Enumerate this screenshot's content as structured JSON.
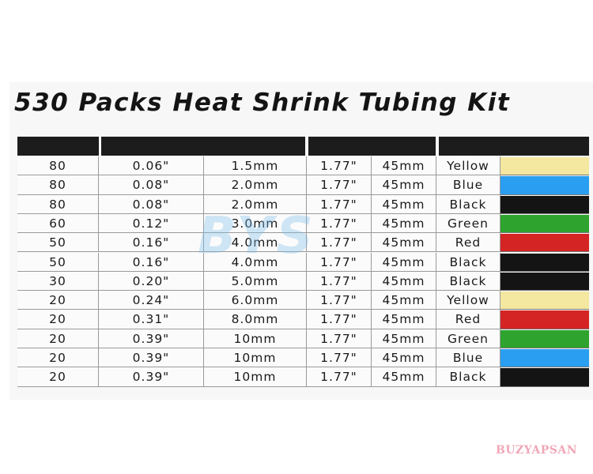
{
  "header": {
    "title": "530 Packs Heat Shrink Tubing Kit"
  },
  "table": {
    "rows": [
      [
        "80",
        "0.06\"",
        "1.5mm",
        "1.77\"",
        "45mm",
        "Yellow"
      ],
      [
        "80",
        "0.08\"",
        "2.0mm",
        "1.77\"",
        "45mm",
        "Blue"
      ],
      [
        "80",
        "0.08\"",
        "2.0mm",
        "1.77\"",
        "45mm",
        "Black"
      ],
      [
        "60",
        "0.12\"",
        "3.0mm",
        "1.77\"",
        "45mm",
        "Green"
      ],
      [
        "50",
        "0.16\"",
        "4.0mm",
        "1.77\"",
        "45mm",
        "Red"
      ],
      [
        "50",
        "0.16\"",
        "4.0mm",
        "1.77\"",
        "45mm",
        "Black"
      ],
      [
        "30",
        "0.20\"",
        "5.0mm",
        "1.77\"",
        "45mm",
        "Black"
      ],
      [
        "20",
        "0.24\"",
        "6.0mm",
        "1.77\"",
        "45mm",
        "Yellow"
      ],
      [
        "20",
        "0.31\"",
        "8.0mm",
        "1.77\"",
        "45mm",
        "Red"
      ],
      [
        "20",
        "0.39\"",
        "10mm",
        "1.77\"",
        "45mm",
        "Green"
      ],
      [
        "20",
        "0.39\"",
        "10mm",
        "1.77\"",
        "45mm",
        "Blue"
      ],
      [
        "20",
        "0.39\"",
        "10mm",
        "1.77\"",
        "45mm",
        "Black"
      ]
    ],
    "swatches": [
      "#f4e7a0",
      "#2a9ef0",
      "#141414",
      "#2ea32e",
      "#d42424",
      "#141414",
      "#141414",
      "#f4e7a0",
      "#d42424",
      "#2ea32e",
      "#2a9ef0",
      "#141414"
    ]
  },
  "watermark": "BYS",
  "brand": "BUZYAPSAN"
}
